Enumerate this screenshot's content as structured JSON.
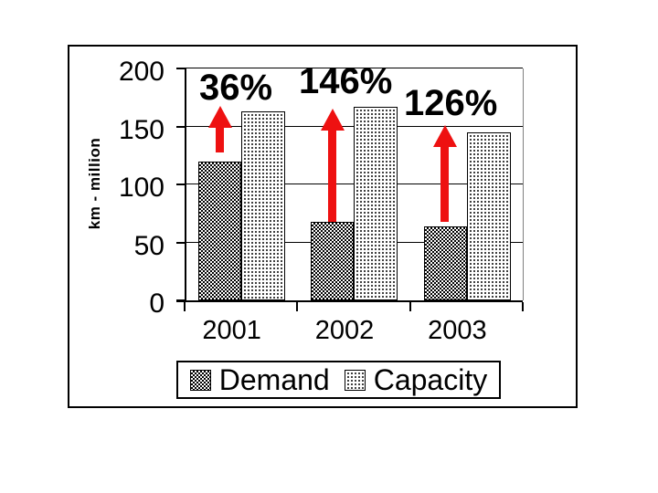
{
  "chart_data": {
    "type": "bar",
    "title": "",
    "ylabel": "km - million",
    "xlabel": "",
    "categories": [
      "2001",
      "2002",
      "2003"
    ],
    "series": [
      {
        "name": "Demand",
        "values": [
          120,
          68,
          64
        ],
        "fill": "dark-checker-pattern"
      },
      {
        "name": "Capacity",
        "values": [
          163,
          167,
          145
        ],
        "fill": "light-dot-pattern"
      }
    ],
    "growth_labels": [
      "36%",
      "146%",
      "126%"
    ],
    "y_ticks": [
      0,
      50,
      100,
      150,
      200
    ],
    "ylim": [
      0,
      200
    ],
    "grid": true,
    "legend_position": "bottom"
  },
  "colors": {
    "background": "#ffffff",
    "frame_border": "#000000",
    "text": "#000000",
    "gridline": "#000000",
    "plot_border": "#808080",
    "pattern_ink": "#000000",
    "pattern_bg": "#ffffff",
    "arrow_red": "#ee1111"
  }
}
